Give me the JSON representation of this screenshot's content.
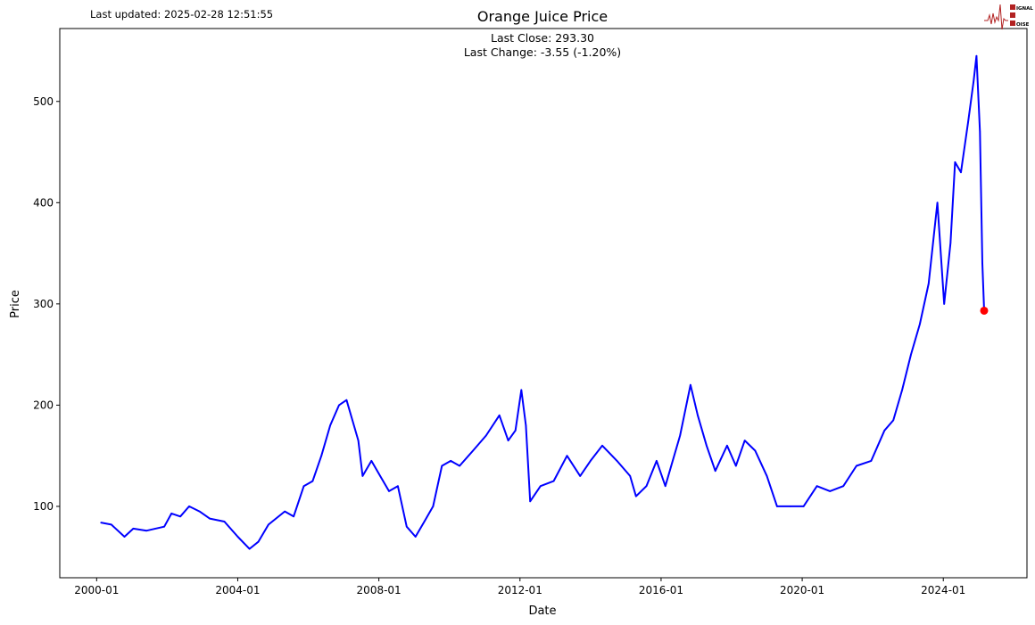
{
  "header": {
    "last_updated": "Last updated: 2025-02-28 12:51:55"
  },
  "logo": {
    "text": "SIGNAL 2 NOISE",
    "icon": "signal-wave-logo",
    "color": "#b22222"
  },
  "chart_data": {
    "type": "line",
    "title": "Orange Juice Price",
    "annotations": [
      "Last Close: 293.30",
      "Last Change: -3.55 (-1.20%)"
    ],
    "xlabel": "Date",
    "ylabel": "Price",
    "xlim": [
      "1998-12-15",
      "2026-05-15"
    ],
    "ylim": [
      29.5,
      572
    ],
    "x_ticks": [
      "2000-01",
      "2004-01",
      "2008-01",
      "2012-01",
      "2016-01",
      "2020-01",
      "2024-01"
    ],
    "y_ticks": [
      100,
      200,
      300,
      400,
      500
    ],
    "grid": false,
    "line_color": "#0000ff",
    "last_point_color": "#ff0000",
    "last_point": {
      "date": "2025-02-28",
      "value": 293.3
    },
    "series": [
      {
        "points": [
          [
            "2000-02-15",
            84
          ],
          [
            "2000-06-01",
            82
          ],
          [
            "2000-10-15",
            70
          ],
          [
            "2001-01-15",
            78
          ],
          [
            "2001-06-01",
            76
          ],
          [
            "2001-12-01",
            80
          ],
          [
            "2002-02-15",
            93
          ],
          [
            "2002-05-15",
            90
          ],
          [
            "2002-08-15",
            100
          ],
          [
            "2002-12-01",
            95
          ],
          [
            "2003-03-15",
            88
          ],
          [
            "2003-08-15",
            85
          ],
          [
            "2004-01-01",
            70
          ],
          [
            "2004-05-01",
            58
          ],
          [
            "2004-08-01",
            65
          ],
          [
            "2004-11-15",
            82
          ],
          [
            "2005-05-01",
            95
          ],
          [
            "2005-08-01",
            90
          ],
          [
            "2005-11-15",
            120
          ],
          [
            "2006-02-15",
            125
          ],
          [
            "2006-05-15",
            150
          ],
          [
            "2006-08-15",
            180
          ],
          [
            "2006-11-15",
            200
          ],
          [
            "2007-02-01",
            205
          ],
          [
            "2007-04-01",
            185
          ],
          [
            "2007-06-01",
            165
          ],
          [
            "2007-07-15",
            130
          ],
          [
            "2007-10-15",
            145
          ],
          [
            "2008-01-15",
            130
          ],
          [
            "2008-04-15",
            115
          ],
          [
            "2008-07-15",
            120
          ],
          [
            "2008-10-15",
            80
          ],
          [
            "2009-01-15",
            70
          ],
          [
            "2009-04-15",
            85
          ],
          [
            "2009-07-15",
            100
          ],
          [
            "2009-10-15",
            140
          ],
          [
            "2010-01-15",
            145
          ],
          [
            "2010-04-15",
            140
          ],
          [
            "2010-09-01",
            155
          ],
          [
            "2011-01-15",
            170
          ],
          [
            "2011-06-01",
            190
          ],
          [
            "2011-09-01",
            165
          ],
          [
            "2011-11-15",
            175
          ],
          [
            "2012-01-15",
            215
          ],
          [
            "2012-03-01",
            180
          ],
          [
            "2012-04-15",
            105
          ],
          [
            "2012-08-01",
            120
          ],
          [
            "2012-12-15",
            125
          ],
          [
            "2013-05-01",
            150
          ],
          [
            "2013-09-15",
            130
          ],
          [
            "2014-01-01",
            145
          ],
          [
            "2014-05-01",
            160
          ],
          [
            "2014-10-01",
            145
          ],
          [
            "2015-02-15",
            130
          ],
          [
            "2015-04-15",
            110
          ],
          [
            "2015-08-01",
            120
          ],
          [
            "2015-11-15",
            145
          ],
          [
            "2016-02-15",
            120
          ],
          [
            "2016-07-15",
            170
          ],
          [
            "2016-11-01",
            220
          ],
          [
            "2017-01-15",
            190
          ],
          [
            "2017-04-15",
            160
          ],
          [
            "2017-07-15",
            135
          ],
          [
            "2017-11-15",
            160
          ],
          [
            "2018-02-15",
            140
          ],
          [
            "2018-05-15",
            165
          ],
          [
            "2018-09-01",
            155
          ],
          [
            "2019-01-01",
            130
          ],
          [
            "2019-04-15",
            100
          ],
          [
            "2019-09-01",
            100
          ],
          [
            "2020-01-15",
            100
          ],
          [
            "2020-06-01",
            120
          ],
          [
            "2020-10-15",
            115
          ],
          [
            "2021-03-01",
            120
          ],
          [
            "2021-07-15",
            140
          ],
          [
            "2021-12-15",
            145
          ],
          [
            "2022-05-01",
            175
          ],
          [
            "2022-08-01",
            185
          ],
          [
            "2022-11-01",
            215
          ],
          [
            "2023-02-01",
            250
          ],
          [
            "2023-05-01",
            280
          ],
          [
            "2023-08-01",
            320
          ],
          [
            "2023-11-01",
            400
          ],
          [
            "2024-01-10",
            300
          ],
          [
            "2024-03-15",
            360
          ],
          [
            "2024-05-01",
            440
          ],
          [
            "2024-07-01",
            430
          ],
          [
            "2024-09-15",
            480
          ],
          [
            "2024-11-10",
            520
          ],
          [
            "2024-12-10",
            545
          ],
          [
            "2025-01-15",
            470
          ],
          [
            "2025-02-10",
            340
          ],
          [
            "2025-02-28",
            293.3
          ]
        ]
      }
    ]
  }
}
